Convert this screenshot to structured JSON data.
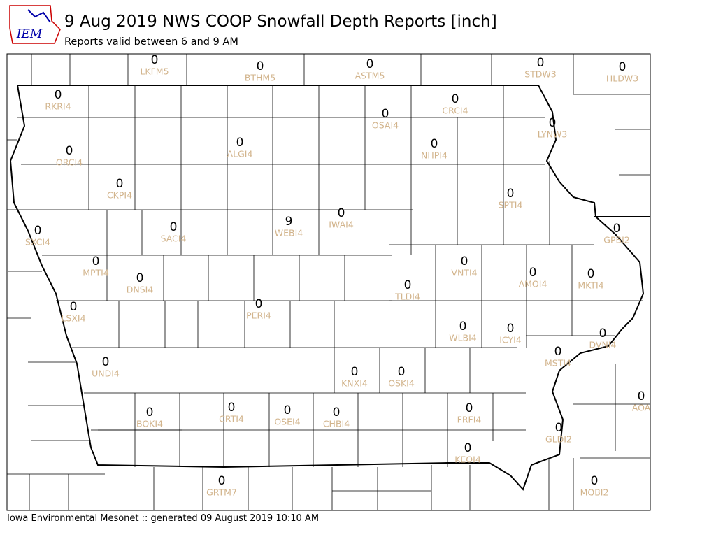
{
  "logo": "IEM",
  "title": "9 Aug 2019 NWS COOP Snowfall Depth Reports [inch]",
  "subtitle": "Reports valid between 6 and 9 AM",
  "footer": "Iowa Environmental Mesonet :: generated 09 August 2019 10:10 AM",
  "stations": [
    {
      "id": "LKFM5",
      "value": 0
    },
    {
      "id": "BTHM5",
      "value": 0
    },
    {
      "id": "ASTM5",
      "value": 0
    },
    {
      "id": "STDW3",
      "value": 0
    },
    {
      "id": "HLDW3",
      "value": 0
    },
    {
      "id": "RKRI4",
      "value": 0
    },
    {
      "id": "CRCI4",
      "value": 0
    },
    {
      "id": "OSAI4",
      "value": 0
    },
    {
      "id": "LYNW3",
      "value": 0
    },
    {
      "id": "ALGI4",
      "value": 0
    },
    {
      "id": "NHPI4",
      "value": 0
    },
    {
      "id": "ORCI4",
      "value": 0
    },
    {
      "id": "CKPI4",
      "value": 0
    },
    {
      "id": "SPTI4",
      "value": 0
    },
    {
      "id": "IWAI4",
      "value": 0
    },
    {
      "id": "WEBI4",
      "value": 9
    },
    {
      "id": "SACI4",
      "value": 0
    },
    {
      "id": "GPBI2",
      "value": 0
    },
    {
      "id": "SXCI4",
      "value": 0
    },
    {
      "id": "VNTI4",
      "value": 0
    },
    {
      "id": "MPTI4",
      "value": 0
    },
    {
      "id": "AMOI4",
      "value": 0
    },
    {
      "id": "MKTI4",
      "value": 0
    },
    {
      "id": "DNSI4",
      "value": 0
    },
    {
      "id": "TLDI4",
      "value": 0
    },
    {
      "id": "PERI4",
      "value": 0
    },
    {
      "id": "LSXI4",
      "value": 0
    },
    {
      "id": "WLBI4",
      "value": 0
    },
    {
      "id": "ICYI4",
      "value": 0
    },
    {
      "id": "DVNI4",
      "value": 0
    },
    {
      "id": "MSTI4",
      "value": 0
    },
    {
      "id": "UNDI4",
      "value": 0
    },
    {
      "id": "KNXI4",
      "value": 0
    },
    {
      "id": "OSKI4",
      "value": 0
    },
    {
      "id": "AOA",
      "value": 0
    },
    {
      "id": "FRFI4",
      "value": 0
    },
    {
      "id": "CRTI4",
      "value": 0
    },
    {
      "id": "OSEI4",
      "value": 0
    },
    {
      "id": "BOKI4",
      "value": 0
    },
    {
      "id": "CHBI4",
      "value": 0
    },
    {
      "id": "GLDI2",
      "value": 0
    },
    {
      "id": "KEOI4",
      "value": 0
    },
    {
      "id": "MQBI2",
      "value": 0
    },
    {
      "id": "GRTM7",
      "value": 0
    }
  ]
}
